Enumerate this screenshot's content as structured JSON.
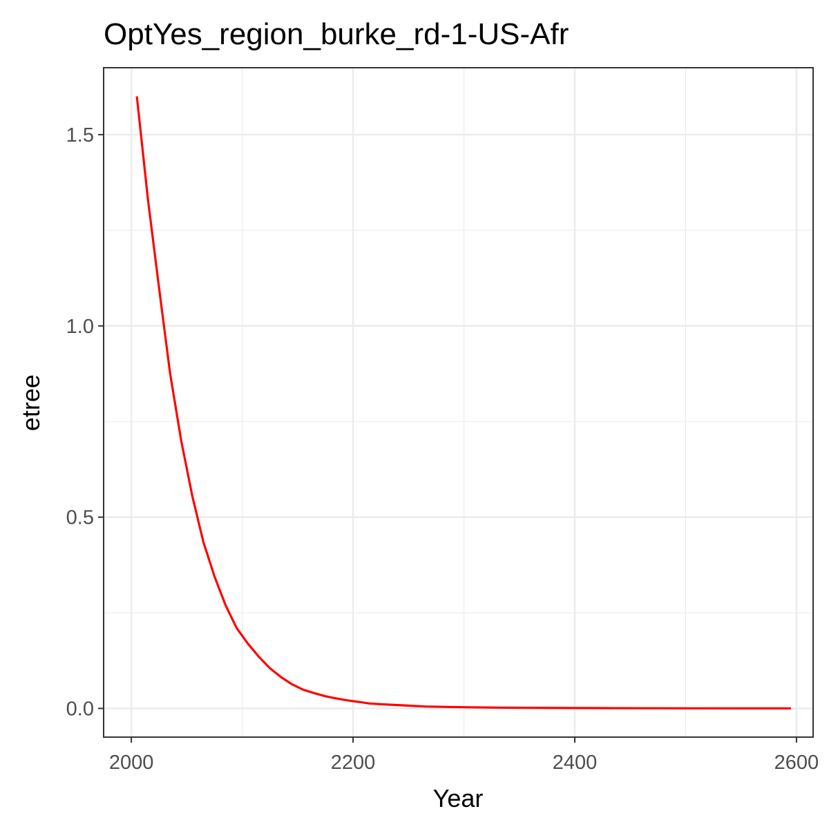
{
  "chart_data": {
    "type": "line",
    "title": "OptYes_region_burke_rd-1-US-Afr",
    "xlabel": "Year",
    "ylabel": "etree",
    "xlim": [
      1975,
      2615
    ],
    "ylim": [
      -0.075,
      1.675
    ],
    "x_ticks": [
      2000,
      2200,
      2400,
      2600
    ],
    "x_tick_labels": [
      "2000",
      "2200",
      "2400",
      "2600"
    ],
    "y_ticks": [
      0.0,
      0.5,
      1.0,
      1.5
    ],
    "y_tick_labels": [
      "0.0",
      "0.5",
      "1.0",
      "1.5"
    ],
    "x_minor": [
      2100,
      2300,
      2500
    ],
    "y_minor": [
      0.25,
      0.75,
      1.25
    ],
    "grid": true,
    "legend": "none",
    "series": [
      {
        "color": "#ff0000",
        "x": [
          2005,
          2015,
          2025,
          2035,
          2045,
          2055,
          2065,
          2075,
          2085,
          2095,
          2105,
          2115,
          2125,
          2135,
          2145,
          2155,
          2165,
          2175,
          2185,
          2195,
          2205,
          2215,
          2225,
          2245,
          2265,
          2285,
          2305,
          2335,
          2365,
          2395,
          2425,
          2465,
          2505,
          2545,
          2595
        ],
        "values": [
          1.6,
          1.33,
          1.1,
          0.875,
          0.7,
          0.555,
          0.435,
          0.345,
          0.27,
          0.21,
          0.17,
          0.135,
          0.105,
          0.082,
          0.063,
          0.049,
          0.04,
          0.032,
          0.026,
          0.021,
          0.017,
          0.013,
          0.011,
          0.008,
          0.005,
          0.004,
          0.003,
          0.002,
          0.0015,
          0.001,
          0.0008,
          0.0005,
          0.0003,
          0.0002,
          0.0001
        ]
      }
    ]
  }
}
